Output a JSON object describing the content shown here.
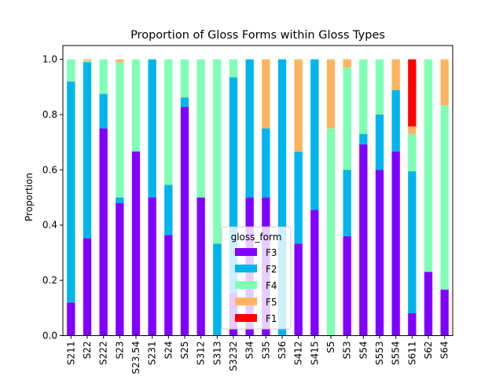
{
  "chart_data": {
    "type": "bar",
    "stacked": true,
    "title": "Proportion of Gloss Forms within Gloss Types",
    "xlabel": "",
    "ylabel": "Proportion",
    "ylim": [
      0,
      1.05
    ],
    "yticks": [
      0.0,
      0.2,
      0.4,
      0.6,
      0.8,
      1.0
    ],
    "ytick_labels": [
      "0.0",
      "0.2",
      "0.4",
      "0.6",
      "0.8",
      "1.0"
    ],
    "grid": false,
    "legend": {
      "title": "gloss_form",
      "placement": "bottom-center"
    },
    "categories": [
      "S211",
      "S22",
      "S222",
      "S23",
      "S23.54",
      "S231",
      "S24",
      "S25",
      "S312",
      "S313",
      "S3232",
      "S34",
      "S35",
      "S36",
      "S412",
      "S415",
      "S5",
      "S53",
      "S54",
      "S553",
      "S554",
      "S611",
      "S62",
      "S64"
    ],
    "category_labels": [
      "S211",
      "S22",
      "S222",
      "S23",
      "S23.54",
      "S231",
      "S24",
      "S25",
      "S312",
      "S313",
      "S3232",
      "S34",
      "S35",
      "S36",
      "S412",
      "S415",
      "S5",
      "S53",
      "S54",
      "S553",
      "S554",
      "S611",
      "S62",
      "S64"
    ],
    "series": [
      {
        "name": "F3",
        "color": "#8000ff",
        "values": [
          0.12,
          0.353,
          0.75,
          0.48,
          0.667,
          0.5,
          0.364,
          0.828,
          0.5,
          0,
          0.154,
          0.5,
          0.5,
          0,
          0.333,
          0.455,
          0,
          0.36,
          0.692,
          0.6,
          0.667,
          0.081,
          0.231,
          0.167
        ]
      },
      {
        "name": "F2",
        "color": "#00b5eb",
        "values": [
          0.8,
          0.637,
          0.125,
          0.02,
          0,
          0.5,
          0.182,
          0.034,
          0,
          0.333,
          0.781,
          0.5,
          0.25,
          1.0,
          0.333,
          0.545,
          0,
          0.24,
          0.038,
          0.2,
          0.222,
          0.514,
          0,
          0
        ]
      },
      {
        "name": "F4",
        "color": "#80ffb4",
        "values": [
          0.08,
          0.005,
          0.125,
          0.49,
          0.333,
          0,
          0.454,
          0.138,
          0.5,
          0.667,
          0.065,
          0,
          0,
          0,
          0,
          0,
          0.75,
          0.37,
          0.27,
          0.2,
          0,
          0.135,
          0.769,
          0.666
        ]
      },
      {
        "name": "F5",
        "color": "#ffb360",
        "values": [
          0,
          0.005,
          0,
          0.01,
          0,
          0,
          0,
          0,
          0,
          0,
          0,
          0,
          0.25,
          0,
          0.334,
          0,
          0.25,
          0.03,
          0,
          0,
          0.111,
          0.027,
          0,
          0.167
        ]
      },
      {
        "name": "F1",
        "color": "#ff0000",
        "values": [
          0,
          0,
          0,
          0,
          0,
          0,
          0,
          0,
          0,
          0,
          0,
          0,
          0,
          0,
          0,
          0,
          0,
          0,
          0,
          0,
          0,
          0.243,
          0,
          0
        ]
      }
    ]
  }
}
